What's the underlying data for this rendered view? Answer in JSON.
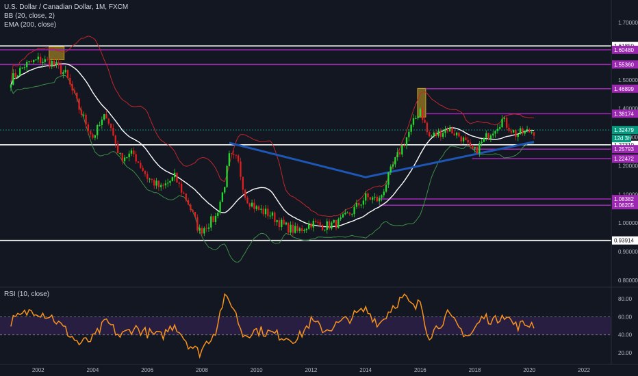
{
  "header": {
    "title": "U.S. Dollar / Canadian Dollar, 1M, FXCM",
    "bb": "BB (20, close, 2)",
    "ema": "EMA (200, close)",
    "rsi": "RSI (10, close)"
  },
  "colors": {
    "background": "#131722",
    "bullish": "#26d92f",
    "bearish": "#e01e1e",
    "bb_upper": "#c0262b",
    "bb_lower": "#3f8d48",
    "bb_basis": "#ffffff",
    "ema": "#1e56b4",
    "rsi_line": "#f7931e",
    "rsi_band": "#2b1f45",
    "level_white": "#ffffff",
    "level_purple": "#9c27b0",
    "current_price": "#089981",
    "highlight": "#c9a227"
  },
  "chart_data": {
    "type": "candlestick",
    "x_ticks": [
      "2002",
      "2004",
      "2006",
      "2008",
      "2010",
      "2012",
      "2014",
      "2016",
      "2018",
      "2020",
      "2022"
    ],
    "y_ticks": [
      "1.70000",
      "1.60000",
      "1.50000",
      "1.40000",
      "1.30000",
      "1.20000",
      "1.10000",
      "1.00000",
      "0.90000",
      "0.80000"
    ],
    "ylim": [
      0.8,
      1.72
    ],
    "horizontal_levels": [
      {
        "value": 1.6185,
        "label": "1.61850",
        "style": "white"
      },
      {
        "value": 1.6048,
        "label": "1.60480",
        "style": "purple"
      },
      {
        "value": 1.5536,
        "label": "1.55360",
        "style": "purple"
      },
      {
        "value": 1.46899,
        "label": "1.46899",
        "style": "purple"
      },
      {
        "value": 1.38174,
        "label": "1.38174",
        "style": "purple"
      },
      {
        "value": 1.2731,
        "label": "1.27310",
        "style": "white"
      },
      {
        "value": 1.25793,
        "label": "1.25793",
        "style": "purple"
      },
      {
        "value": 1.22472,
        "label": "1.22472",
        "style": "purple"
      },
      {
        "value": 1.08382,
        "label": "1.08382",
        "style": "purple"
      },
      {
        "value": 1.06205,
        "label": "1.06205",
        "style": "purple"
      },
      {
        "value": 0.93914,
        "label": "0.93914",
        "style": "white"
      }
    ],
    "current_price": {
      "value": 1.32479,
      "label": "1.32479",
      "countdown": "12d 3h"
    },
    "price_key_points": [
      {
        "x": 2001.0,
        "y": 1.5
      },
      {
        "x": 2001.5,
        "y": 1.55
      },
      {
        "x": 2002.0,
        "y": 1.57
      },
      {
        "x": 2002.5,
        "y": 1.56
      },
      {
        "x": 2003.0,
        "y": 1.52
      },
      {
        "x": 2003.5,
        "y": 1.4
      },
      {
        "x": 2004.0,
        "y": 1.3
      },
      {
        "x": 2004.5,
        "y": 1.38
      },
      {
        "x": 2005.0,
        "y": 1.23
      },
      {
        "x": 2005.5,
        "y": 1.24
      },
      {
        "x": 2006.0,
        "y": 1.16
      },
      {
        "x": 2006.5,
        "y": 1.12
      },
      {
        "x": 2007.0,
        "y": 1.16
      },
      {
        "x": 2007.5,
        "y": 1.07
      },
      {
        "x": 2007.9,
        "y": 0.97
      },
      {
        "x": 2008.5,
        "y": 1.02
      },
      {
        "x": 2008.8,
        "y": 1.12
      },
      {
        "x": 2009.0,
        "y": 1.23
      },
      {
        "x": 2009.3,
        "y": 1.22
      },
      {
        "x": 2009.6,
        "y": 1.09
      },
      {
        "x": 2010.0,
        "y": 1.05
      },
      {
        "x": 2010.5,
        "y": 1.03
      },
      {
        "x": 2011.0,
        "y": 0.99
      },
      {
        "x": 2011.5,
        "y": 0.97
      },
      {
        "x": 2012.0,
        "y": 1.0
      },
      {
        "x": 2012.5,
        "y": 0.99
      },
      {
        "x": 2013.0,
        "y": 1.0
      },
      {
        "x": 2013.5,
        "y": 1.04
      },
      {
        "x": 2014.0,
        "y": 1.09
      },
      {
        "x": 2014.5,
        "y": 1.08
      },
      {
        "x": 2015.0,
        "y": 1.2
      },
      {
        "x": 2015.5,
        "y": 1.3
      },
      {
        "x": 2016.0,
        "y": 1.4
      },
      {
        "x": 2016.3,
        "y": 1.3
      },
      {
        "x": 2016.6,
        "y": 1.31
      },
      {
        "x": 2017.0,
        "y": 1.33
      },
      {
        "x": 2017.5,
        "y": 1.3
      },
      {
        "x": 2017.8,
        "y": 1.26
      },
      {
        "x": 2018.0,
        "y": 1.25
      },
      {
        "x": 2018.5,
        "y": 1.31
      },
      {
        "x": 2019.0,
        "y": 1.36
      },
      {
        "x": 2019.5,
        "y": 1.31
      },
      {
        "x": 2020.0,
        "y": 1.32
      }
    ],
    "rsi_key_points": [
      {
        "x": 2001.0,
        "y": 55
      },
      {
        "x": 2001.8,
        "y": 68
      },
      {
        "x": 2002.5,
        "y": 60
      },
      {
        "x": 2003.0,
        "y": 45
      },
      {
        "x": 2003.5,
        "y": 30
      },
      {
        "x": 2004.0,
        "y": 35
      },
      {
        "x": 2004.5,
        "y": 55
      },
      {
        "x": 2005.0,
        "y": 38
      },
      {
        "x": 2005.5,
        "y": 48
      },
      {
        "x": 2006.0,
        "y": 42
      },
      {
        "x": 2006.5,
        "y": 38
      },
      {
        "x": 2007.0,
        "y": 52
      },
      {
        "x": 2007.5,
        "y": 30
      },
      {
        "x": 2007.9,
        "y": 20
      },
      {
        "x": 2008.5,
        "y": 45
      },
      {
        "x": 2008.8,
        "y": 80
      },
      {
        "x": 2009.1,
        "y": 75
      },
      {
        "x": 2009.5,
        "y": 40
      },
      {
        "x": 2010.0,
        "y": 45
      },
      {
        "x": 2010.5,
        "y": 42
      },
      {
        "x": 2011.0,
        "y": 38
      },
      {
        "x": 2011.5,
        "y": 35
      },
      {
        "x": 2012.0,
        "y": 55
      },
      {
        "x": 2012.5,
        "y": 45
      },
      {
        "x": 2013.0,
        "y": 52
      },
      {
        "x": 2013.5,
        "y": 60
      },
      {
        "x": 2014.0,
        "y": 68
      },
      {
        "x": 2014.5,
        "y": 52
      },
      {
        "x": 2015.0,
        "y": 72
      },
      {
        "x": 2015.4,
        "y": 82
      },
      {
        "x": 2015.8,
        "y": 68
      },
      {
        "x": 2016.0,
        "y": 78
      },
      {
        "x": 2016.3,
        "y": 38
      },
      {
        "x": 2017.0,
        "y": 62
      },
      {
        "x": 2017.5,
        "y": 45
      },
      {
        "x": 2017.8,
        "y": 38
      },
      {
        "x": 2018.3,
        "y": 60
      },
      {
        "x": 2018.8,
        "y": 55
      },
      {
        "x": 2019.0,
        "y": 65
      },
      {
        "x": 2019.5,
        "y": 50
      },
      {
        "x": 2020.0,
        "y": 52
      }
    ],
    "rsi_y_ticks": [
      "80.00",
      "60.00",
      "40.00",
      "20.00"
    ],
    "rsi_band": [
      40,
      60
    ],
    "highlight_boxes": [
      {
        "x0": 2002.4,
        "x1": 2002.95,
        "y0": 1.57,
        "y1": 1.615
      },
      {
        "x0": 2015.9,
        "x1": 2016.2,
        "y0": 1.37,
        "y1": 1.47
      }
    ]
  }
}
